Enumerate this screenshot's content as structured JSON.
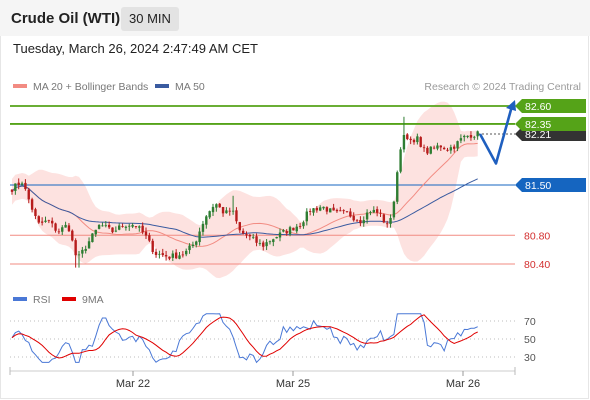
{
  "header": {
    "instrument": "Crude Oil (WTI)",
    "timeframe": "30 MIN"
  },
  "datetime": "Tuesday, March 26, 2024 2:47:49 AM CET",
  "colors": {
    "bollinger": "#f28b82",
    "ma50": "#3a5ba0",
    "candle_up": "#2e7d32",
    "candle_down": "#b71c1c",
    "resistance": "#55a318",
    "support_blue": "#1565c0",
    "support_red": "#f28b82",
    "forecast": "#1f5fbf",
    "rsi": "#4a78d6",
    "rsi_ma": "#e00000",
    "last_price_bg": "#333333"
  },
  "chart_data": [
    {
      "type": "candlestick",
      "title": "Crude Oil (WTI)",
      "timeframe": "30 MIN",
      "legend": [
        "MA 20 + Bollinger Bands",
        "MA 50"
      ],
      "legend_position": "top-left",
      "source": "Research © 2024 Trading Central",
      "ylim": [
        80.33,
        82.71
      ],
      "x_labels": [
        "Mar 22",
        "Mar 25",
        "Mar 26"
      ],
      "last_price": "82.21",
      "levels": [
        {
          "label": "82.60",
          "value": 82.6,
          "kind": "resistance"
        },
        {
          "label": "82.35",
          "value": 82.35,
          "kind": "resistance"
        },
        {
          "label": "81.50",
          "value": 81.5,
          "kind": "support_blue"
        },
        {
          "label": "80.80",
          "value": 80.8,
          "kind": "support_red"
        },
        {
          "label": "80.40",
          "value": 80.4,
          "kind": "support_red"
        }
      ],
      "forecast_path": [
        {
          "x": 0,
          "value": 82.21
        },
        {
          "x": 1,
          "value": 81.8
        },
        {
          "x": 2,
          "value": 82.6
        }
      ],
      "series": [
        {
          "name": "MA 20 + Bollinger Bands",
          "kind": "band"
        },
        {
          "name": "MA 50",
          "kind": "line"
        },
        {
          "name": "price",
          "kind": "candles"
        }
      ]
    },
    {
      "type": "line",
      "title": "",
      "legend": [
        "RSI",
        "9MA"
      ],
      "legend_position": "top-left",
      "ylim": [
        20,
        80
      ],
      "y_ticks": [
        "70",
        "50",
        "30"
      ],
      "grid": "dotted at 30 / 50 / 70",
      "series": [
        {
          "name": "RSI",
          "kind": "line"
        },
        {
          "name": "9MA",
          "kind": "line"
        }
      ]
    }
  ]
}
